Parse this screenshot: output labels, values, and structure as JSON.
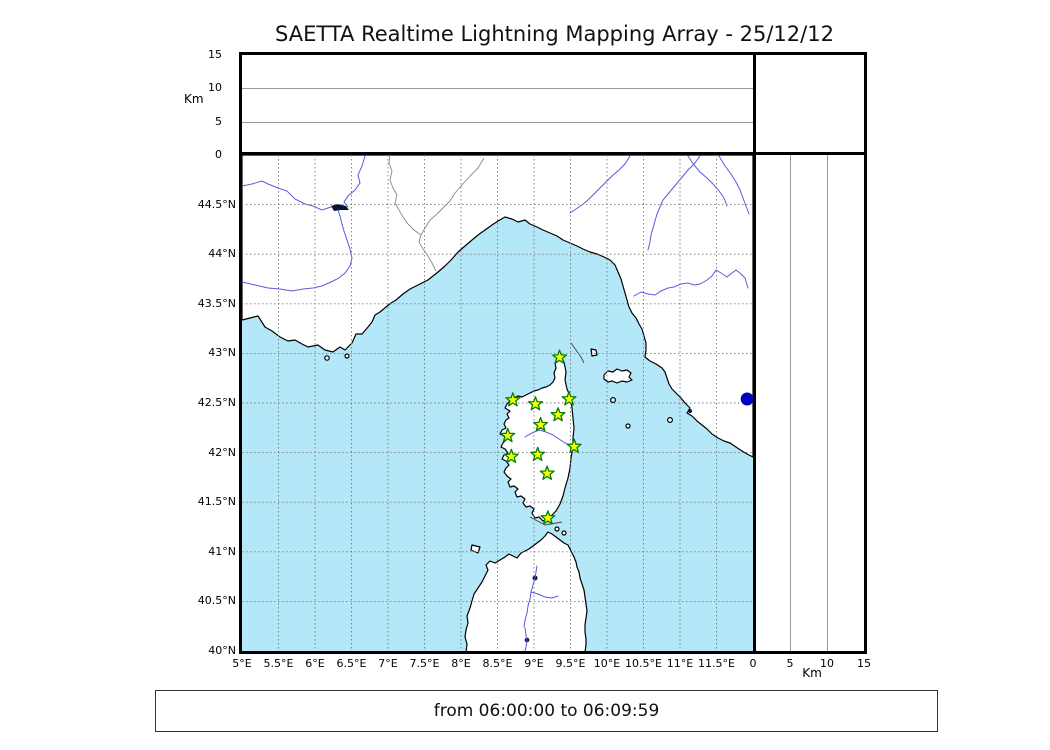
{
  "title": "SAETTA Realtime Lightning Mapping Array - 25/12/12",
  "footer": "from 06:00:00 to 06:09:59",
  "altitude_axis": {
    "unit_label": "Km",
    "ticks": [
      0,
      5,
      10,
      15
    ],
    "max": 15,
    "gridlines": [
      5,
      10
    ]
  },
  "map": {
    "extent": {
      "lon_min": 5,
      "lon_max": 12,
      "lat_min": 40,
      "lat_max": 45
    },
    "grid_step": 0.5,
    "lat_ticks": [
      {
        "value": 44.5,
        "label": "44.5°N"
      },
      {
        "value": 44.0,
        "label": "44°N"
      },
      {
        "value": 43.5,
        "label": "43.5°N"
      },
      {
        "value": 43.0,
        "label": "43°N"
      },
      {
        "value": 42.5,
        "label": "42.5°N"
      },
      {
        "value": 42.0,
        "label": "42°N"
      },
      {
        "value": 41.5,
        "label": "41.5°N"
      },
      {
        "value": 41.0,
        "label": "41°N"
      },
      {
        "value": 40.5,
        "label": "40.5°N"
      },
      {
        "value": 40.0,
        "label": "40°N"
      }
    ],
    "lon_ticks": [
      {
        "value": 5.0,
        "label": "5°E"
      },
      {
        "value": 5.5,
        "label": "5.5°E"
      },
      {
        "value": 6.0,
        "label": "6°E"
      },
      {
        "value": 6.5,
        "label": "6.5°E"
      },
      {
        "value": 7.0,
        "label": "7°E"
      },
      {
        "value": 7.5,
        "label": "7.5°E"
      },
      {
        "value": 8.0,
        "label": "8°E"
      },
      {
        "value": 8.5,
        "label": "8.5°E"
      },
      {
        "value": 9.0,
        "label": "9°E"
      },
      {
        "value": 9.5,
        "label": "9.5°E"
      },
      {
        "value": 10.0,
        "label": "10°E"
      },
      {
        "value": 10.5,
        "label": "10.5°E"
      },
      {
        "value": 11.0,
        "label": "11°E"
      },
      {
        "value": 11.5,
        "label": "11.5°E"
      }
    ]
  },
  "stations": [
    {
      "lon": 9.35,
      "lat": 42.96
    },
    {
      "lon": 8.71,
      "lat": 42.53
    },
    {
      "lon": 9.02,
      "lat": 42.49
    },
    {
      "lon": 9.48,
      "lat": 42.54
    },
    {
      "lon": 9.33,
      "lat": 42.38
    },
    {
      "lon": 9.09,
      "lat": 42.28
    },
    {
      "lon": 8.64,
      "lat": 42.17
    },
    {
      "lon": 9.55,
      "lat": 42.06
    },
    {
      "lon": 9.05,
      "lat": 41.98
    },
    {
      "lon": 8.69,
      "lat": 41.96
    },
    {
      "lon": 9.18,
      "lat": 41.79
    },
    {
      "lon": 9.19,
      "lat": 41.34
    }
  ],
  "city_marker": {
    "lon": 11.92,
    "lat": 42.54
  },
  "colors": {
    "sea": "#b4e7f8",
    "land": "#ffffff",
    "coastline": "#000000",
    "river": "#5a5ae0",
    "border_line": "#888888",
    "grid": "#7a7a7a",
    "star_fill": "#ffff00",
    "star_edge": "#008000",
    "city_dot": "#0000bb",
    "panel_line": "#999999"
  }
}
